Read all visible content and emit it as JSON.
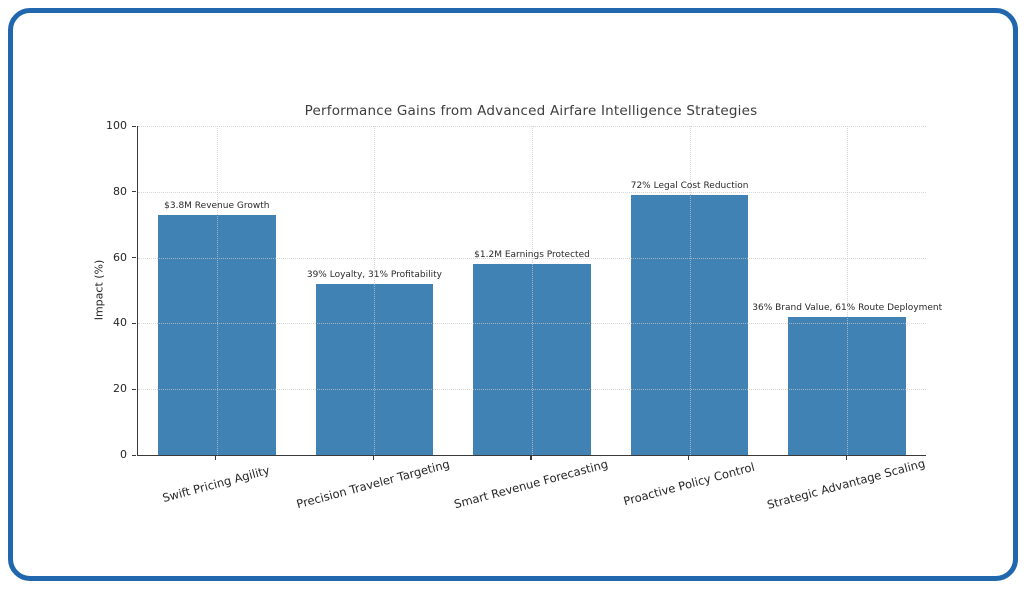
{
  "frame": {
    "border_color": "#2167ae",
    "background_color": "#ffffff"
  },
  "chart_data": {
    "type": "bar",
    "title": "Performance Gains from Advanced Airfare Intelligence Strategies",
    "xlabel": "",
    "ylabel": "Impact (%)",
    "ylim": [
      0,
      100
    ],
    "yticks": [
      0,
      20,
      40,
      60,
      80,
      100
    ],
    "grid": "dotted both axes",
    "legend": "none",
    "bar_color": "#4182b4",
    "categories": [
      "Swift Pricing Agility",
      "Precision Traveler Targeting",
      "Smart Revenue Forecasting",
      "Proactive Policy Control",
      "Strategic Advantage Scaling"
    ],
    "values": [
      73,
      52,
      58,
      79,
      42
    ],
    "bar_labels": [
      "$3.8M Revenue Growth",
      "39% Loyalty, 31% Profitability",
      "$1.2M Earnings Protected",
      "72% Legal Cost Reduction",
      "36% Brand Value, 61% Route Deployment"
    ]
  }
}
